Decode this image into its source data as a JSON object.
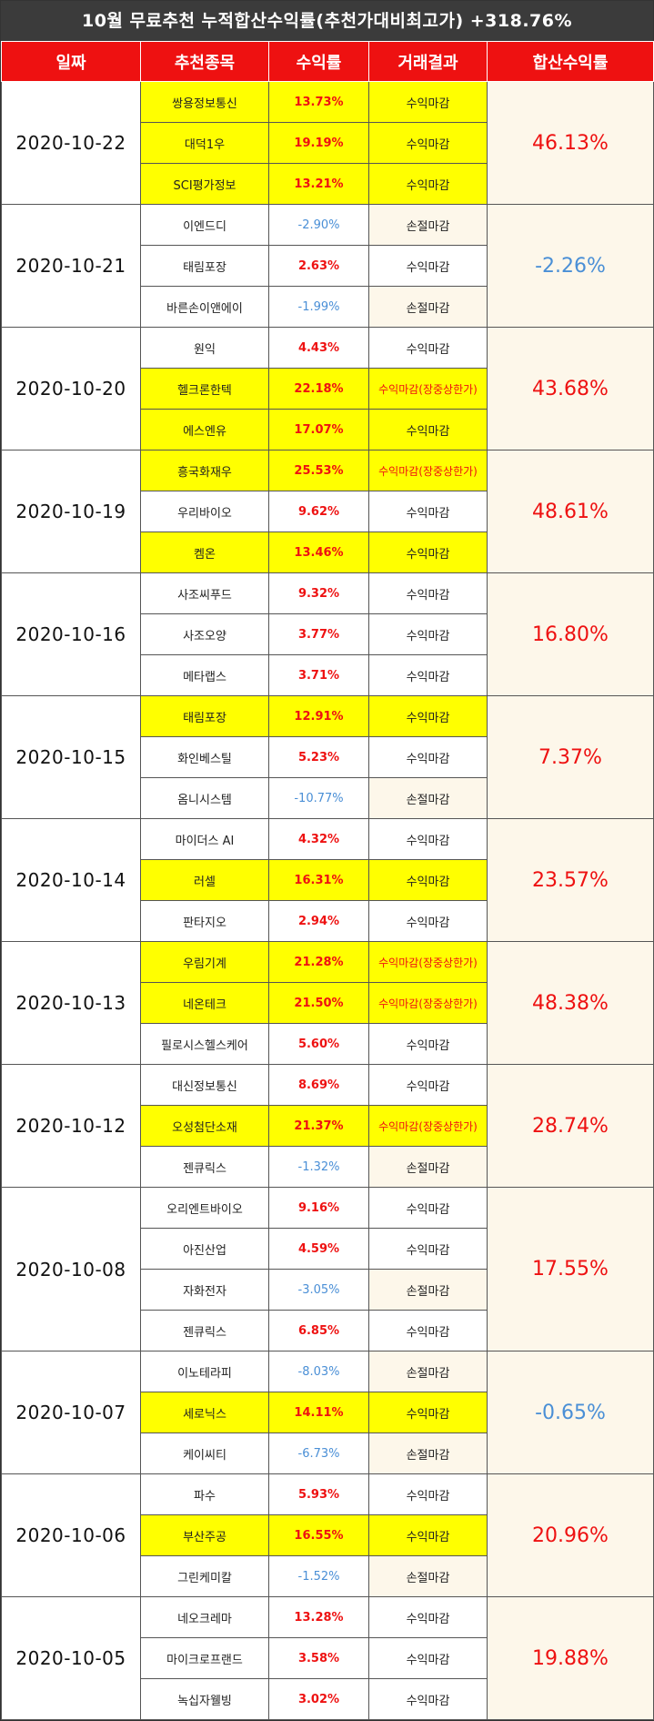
{
  "title": "10월 무료추천 누적합산수익률(추천가대비최고가) +318.76%",
  "headers": [
    "일짜",
    "추천종목",
    "수익률",
    "거래결과",
    "합산수익률"
  ],
  "groups": [
    {
      "date": "2020-10-22",
      "total": "46.13%",
      "total_sign": "pos",
      "rows": [
        {
          "name": "쌍용정보통신",
          "rate": "13.73%",
          "sign": "pos",
          "result": "수익마감",
          "hl": true
        },
        {
          "name": "대덕1우",
          "rate": "19.19%",
          "sign": "pos",
          "result": "수익마감",
          "hl": true
        },
        {
          "name": "SCI평가정보",
          "rate": "13.21%",
          "sign": "pos",
          "result": "수익마감",
          "hl": true
        }
      ]
    },
    {
      "date": "2020-10-21",
      "total": "-2.26%",
      "total_sign": "neg",
      "rows": [
        {
          "name": "이엔드디",
          "rate": "-2.90%",
          "sign": "neg",
          "result": "손절마감",
          "hl": false
        },
        {
          "name": "태림포장",
          "rate": "2.63%",
          "sign": "pos",
          "result": "수익마감",
          "hl": false
        },
        {
          "name": "바른손이앤에이",
          "rate": "-1.99%",
          "sign": "neg",
          "result": "손절마감",
          "hl": false
        }
      ]
    },
    {
      "date": "2020-10-20",
      "total": "43.68%",
      "total_sign": "pos",
      "rows": [
        {
          "name": "원익",
          "rate": "4.43%",
          "sign": "pos",
          "result": "수익마감",
          "hl": false
        },
        {
          "name": "헬크론한텍",
          "rate": "22.18%",
          "sign": "pos",
          "result": "수익마감(장중상한가)",
          "hl": true,
          "limit": true
        },
        {
          "name": "에스엔유",
          "rate": "17.07%",
          "sign": "pos",
          "result": "수익마감",
          "hl": true
        }
      ]
    },
    {
      "date": "2020-10-19",
      "total": "48.61%",
      "total_sign": "pos",
      "rows": [
        {
          "name": "흥국화재우",
          "rate": "25.53%",
          "sign": "pos",
          "result": "수익마감(장중상한가)",
          "hl": true,
          "limit": true
        },
        {
          "name": "우리바이오",
          "rate": "9.62%",
          "sign": "pos",
          "result": "수익마감",
          "hl": false
        },
        {
          "name": "켐온",
          "rate": "13.46%",
          "sign": "pos",
          "result": "수익마감",
          "hl": true
        }
      ]
    },
    {
      "date": "2020-10-16",
      "total": "16.80%",
      "total_sign": "pos",
      "rows": [
        {
          "name": "사조씨푸드",
          "rate": "9.32%",
          "sign": "pos",
          "result": "수익마감",
          "hl": false
        },
        {
          "name": "사조오양",
          "rate": "3.77%",
          "sign": "pos",
          "result": "수익마감",
          "hl": false
        },
        {
          "name": "메타랩스",
          "rate": "3.71%",
          "sign": "pos",
          "result": "수익마감",
          "hl": false
        }
      ]
    },
    {
      "date": "2020-10-15",
      "total": "7.37%",
      "total_sign": "pos",
      "rows": [
        {
          "name": "태림포장",
          "rate": "12.91%",
          "sign": "pos",
          "result": "수익마감",
          "hl": true
        },
        {
          "name": "화인베스틸",
          "rate": "5.23%",
          "sign": "pos",
          "result": "수익마감",
          "hl": false
        },
        {
          "name": "옴니시스템",
          "rate": "-10.77%",
          "sign": "neg",
          "result": "손절마감",
          "hl": false
        }
      ]
    },
    {
      "date": "2020-10-14",
      "total": "23.57%",
      "total_sign": "pos",
      "rows": [
        {
          "name": "마이더스 AI",
          "rate": "4.32%",
          "sign": "pos",
          "result": "수익마감",
          "hl": false
        },
        {
          "name": "러셀",
          "rate": "16.31%",
          "sign": "pos",
          "result": "수익마감",
          "hl": true
        },
        {
          "name": "판타지오",
          "rate": "2.94%",
          "sign": "pos",
          "result": "수익마감",
          "hl": false
        }
      ]
    },
    {
      "date": "2020-10-13",
      "total": "48.38%",
      "total_sign": "pos",
      "rows": [
        {
          "name": "우림기계",
          "rate": "21.28%",
          "sign": "pos",
          "result": "수익마감(장중상한가)",
          "hl": true,
          "limit": true
        },
        {
          "name": "네온테크",
          "rate": "21.50%",
          "sign": "pos",
          "result": "수익마감(장중상한가)",
          "hl": true,
          "limit": true
        },
        {
          "name": "필로시스헬스케어",
          "rate": "5.60%",
          "sign": "pos",
          "result": "수익마감",
          "hl": false
        }
      ]
    },
    {
      "date": "2020-10-12",
      "total": "28.74%",
      "total_sign": "pos",
      "rows": [
        {
          "name": "대신정보통신",
          "rate": "8.69%",
          "sign": "pos",
          "result": "수익마감",
          "hl": false
        },
        {
          "name": "오성첨단소재",
          "rate": "21.37%",
          "sign": "pos",
          "result": "수익마감(장중상한가)",
          "hl": true,
          "limit": true
        },
        {
          "name": "젠큐릭스",
          "rate": "-1.32%",
          "sign": "neg",
          "result": "손절마감",
          "hl": false
        }
      ]
    },
    {
      "date": "2020-10-08",
      "total": "17.55%",
      "total_sign": "pos",
      "rows": [
        {
          "name": "오리엔트바이오",
          "rate": "9.16%",
          "sign": "pos",
          "result": "수익마감",
          "hl": false
        },
        {
          "name": "아진산업",
          "rate": "4.59%",
          "sign": "pos",
          "result": "수익마감",
          "hl": false
        },
        {
          "name": "자화전자",
          "rate": "-3.05%",
          "sign": "neg",
          "result": "손절마감",
          "hl": false
        },
        {
          "name": "젠큐릭스",
          "rate": "6.85%",
          "sign": "pos",
          "result": "수익마감",
          "hl": false
        }
      ]
    },
    {
      "date": "2020-10-07",
      "total": "-0.65%",
      "total_sign": "neg",
      "rows": [
        {
          "name": "이노테라피",
          "rate": "-8.03%",
          "sign": "neg",
          "result": "손절마감",
          "hl": false
        },
        {
          "name": "세로닉스",
          "rate": "14.11%",
          "sign": "pos",
          "result": "수익마감",
          "hl": true
        },
        {
          "name": "케이씨티",
          "rate": "-6.73%",
          "sign": "neg",
          "result": "손절마감",
          "hl": false
        }
      ]
    },
    {
      "date": "2020-10-06",
      "total": "20.96%",
      "total_sign": "pos",
      "rows": [
        {
          "name": "파수",
          "rate": "5.93%",
          "sign": "pos",
          "result": "수익마감",
          "hl": false
        },
        {
          "name": "부산주공",
          "rate": "16.55%",
          "sign": "pos",
          "result": "수익마감",
          "hl": true
        },
        {
          "name": "그린케미칼",
          "rate": "-1.52%",
          "sign": "neg",
          "result": "손절마감",
          "hl": false
        }
      ]
    },
    {
      "date": "2020-10-05",
      "total": "19.88%",
      "total_sign": "pos",
      "rows": [
        {
          "name": "네오크레마",
          "rate": "13.28%",
          "sign": "pos",
          "result": "수익마감",
          "hl": false
        },
        {
          "name": "마이크로프랜드",
          "rate": "3.58%",
          "sign": "pos",
          "result": "수익마감",
          "hl": false
        },
        {
          "name": "녹십자웰빙",
          "rate": "3.02%",
          "sign": "pos",
          "result": "수익마감",
          "hl": false
        }
      ]
    }
  ]
}
